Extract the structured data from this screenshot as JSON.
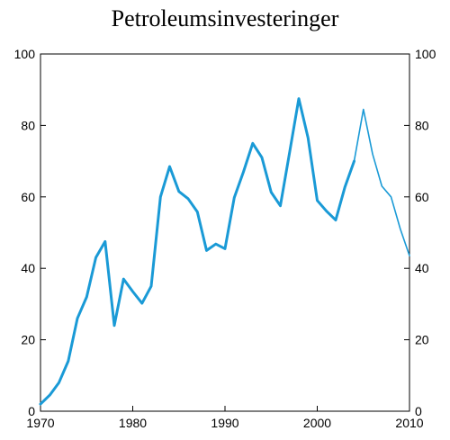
{
  "chart_data": {
    "type": "line",
    "title": "Petroleumsinvesteringer",
    "xlabel": "",
    "ylabel": "",
    "xlim": [
      1970,
      2010
    ],
    "ylim": [
      0,
      100
    ],
    "x_ticks": [
      "1970",
      "1980",
      "1990",
      "2000",
      "2010"
    ],
    "y_ticks": [
      "0",
      "20",
      "40",
      "60",
      "80",
      "100"
    ],
    "right_axis_mirrors_left": true,
    "grid": false,
    "color": "#1a9ad6",
    "series": [
      {
        "style": "thick",
        "x": [
          1970,
          1971,
          1972,
          1973,
          1974,
          1975,
          1976,
          1977,
          1978,
          1979,
          1980,
          1981,
          1982,
          1983,
          1984,
          1985,
          1986,
          1987,
          1988,
          1989,
          1990,
          1991,
          1992,
          1993,
          1994,
          1995,
          1996,
          1997,
          1998,
          1999,
          2000,
          2001,
          2002,
          2003,
          2004
        ],
        "values": [
          2,
          4.5,
          8,
          14,
          26,
          32,
          43,
          47.5,
          24,
          37,
          33.5,
          30.2,
          35,
          60,
          68.5,
          61.5,
          59.5,
          55.8,
          45,
          46.8,
          45.5,
          59.8,
          67,
          75,
          71,
          61.3,
          57.5,
          72.5,
          87.5,
          76.5,
          59,
          56,
          53.5,
          62.8,
          70
        ]
      },
      {
        "style": "thin",
        "x": [
          2004,
          2005,
          2006,
          2007,
          2008,
          2009,
          2010
        ],
        "values": [
          70,
          84.5,
          72,
          63,
          60,
          51,
          43.5
        ]
      }
    ]
  }
}
